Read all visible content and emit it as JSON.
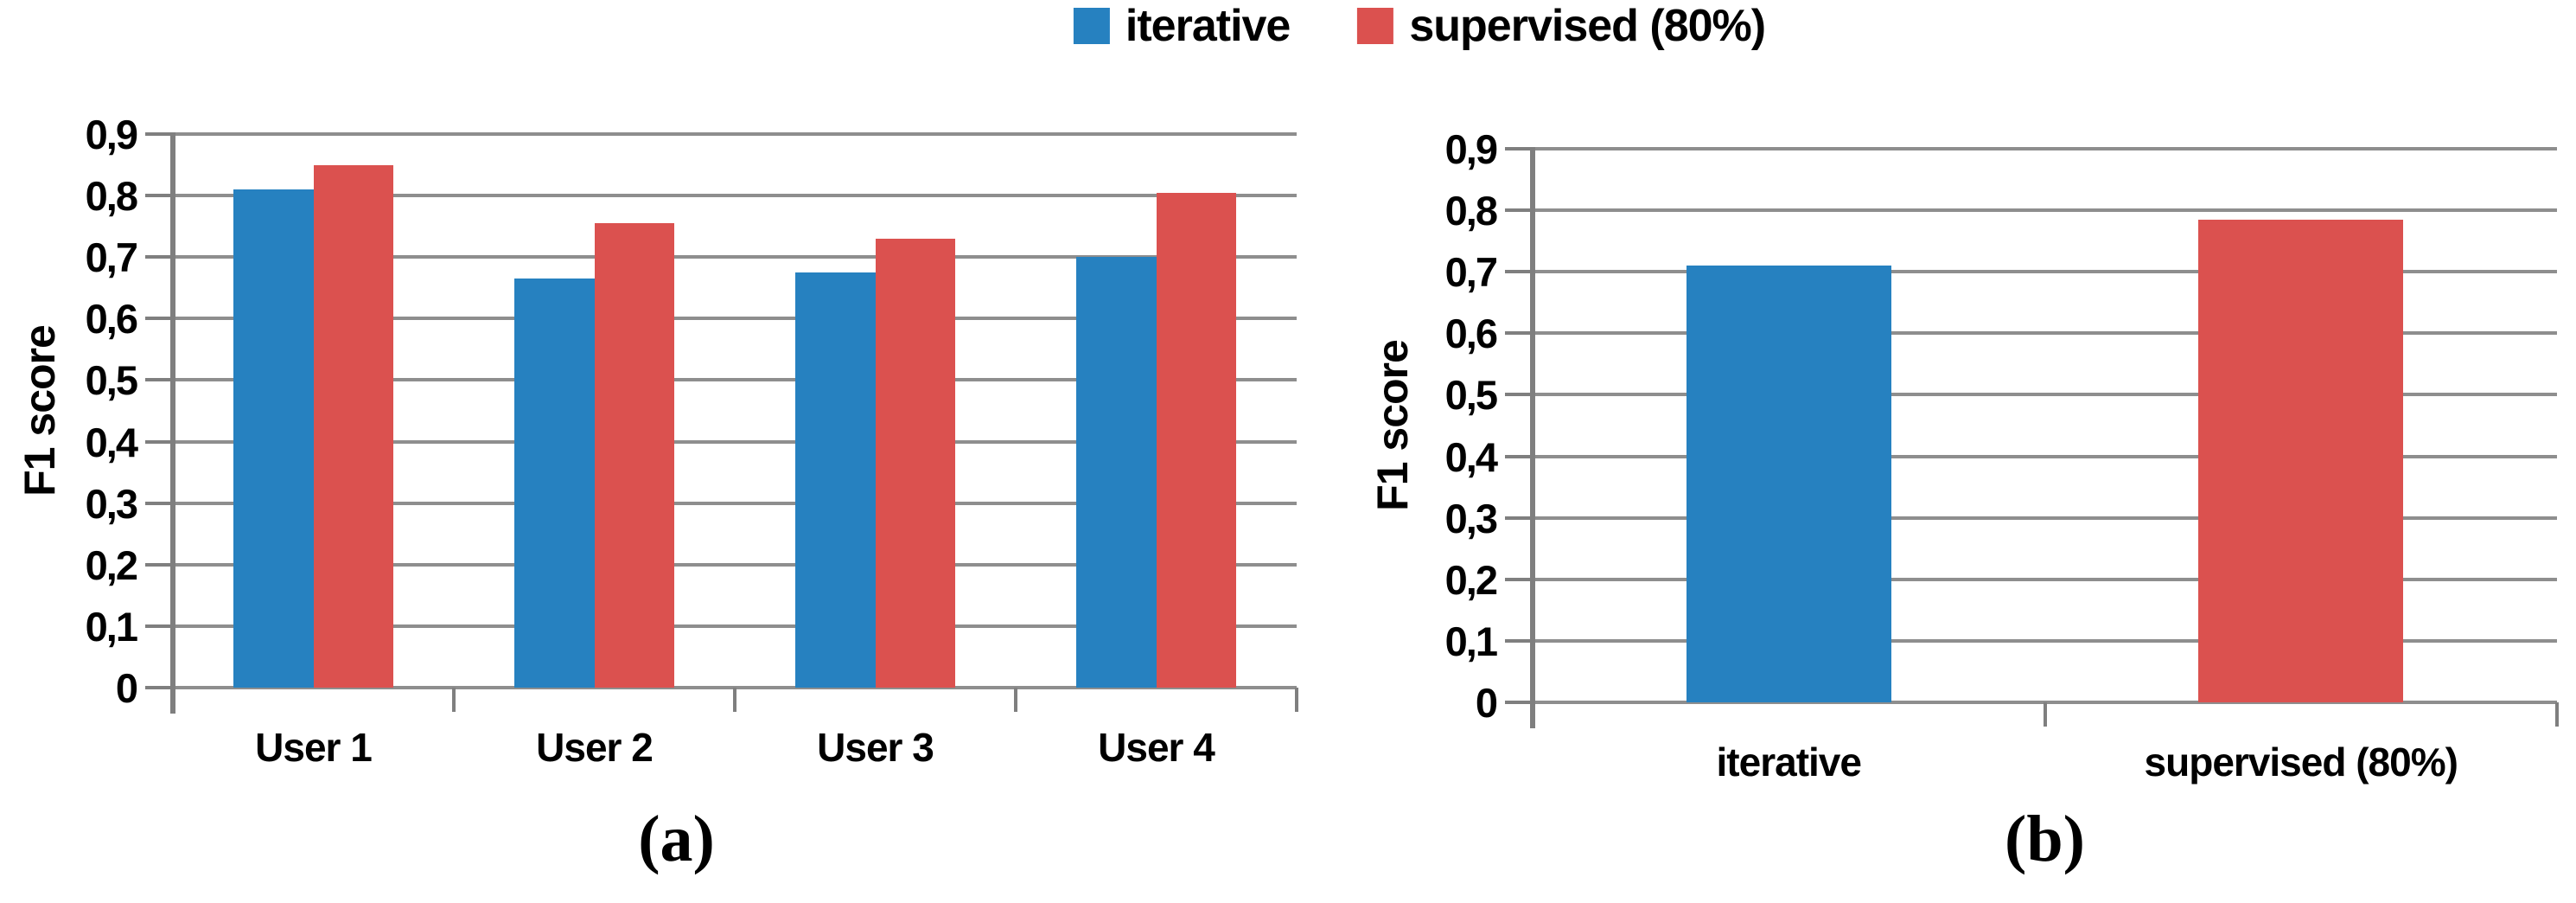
{
  "legend": {
    "position": "top-center",
    "items": [
      {
        "label": "iterative",
        "color": "#2681C0"
      },
      {
        "label": "supervised (80%)",
        "color": "#DB514F"
      }
    ]
  },
  "axis_colors": {
    "gridline": "#8E8E8E",
    "axis": "#7F7F7F"
  },
  "chart_data": [
    {
      "type": "bar",
      "caption": "(a)",
      "ylabel": "F1 score",
      "ylim": [
        0,
        0.9
      ],
      "grid": true,
      "decimal_separator": ",",
      "ytick_values": [
        0,
        0.1,
        0.2,
        0.3,
        0.4,
        0.5,
        0.6,
        0.7,
        0.8,
        0.9
      ],
      "ytick_labels": [
        "0",
        "0,1",
        "0,2",
        "0,3",
        "0,4",
        "0,5",
        "0,6",
        "0,7",
        "0,8",
        "0,9"
      ],
      "categories": [
        "User 1",
        "User 2",
        "User 3",
        "User 4"
      ],
      "series": [
        {
          "name": "iterative",
          "color": "#2681C0",
          "values": [
            0.81,
            0.665,
            0.675,
            0.7
          ]
        },
        {
          "name": "supervised (80%)",
          "color": "#DB514F",
          "values": [
            0.85,
            0.755,
            0.73,
            0.805
          ]
        }
      ],
      "legend_labels": [
        "iterative",
        "supervised (80%)"
      ],
      "legend_position": "top-center-shared"
    },
    {
      "type": "bar",
      "caption": "(b)",
      "ylabel": "F1 score",
      "ylim": [
        0,
        0.9
      ],
      "grid": true,
      "decimal_separator": ",",
      "ytick_values": [
        0,
        0.1,
        0.2,
        0.3,
        0.4,
        0.5,
        0.6,
        0.7,
        0.8,
        0.9
      ],
      "ytick_labels": [
        "0",
        "0,1",
        "0,2",
        "0,3",
        "0,4",
        "0,5",
        "0,6",
        "0,7",
        "0,8",
        "0,9"
      ],
      "categories": [
        "iterative",
        "supervised (80%)"
      ],
      "series": [
        {
          "name": "F1 score",
          "colors": [
            "#2681C0",
            "#DB514F"
          ],
          "values": [
            0.71,
            0.785
          ]
        }
      ],
      "legend_position": "none"
    }
  ]
}
